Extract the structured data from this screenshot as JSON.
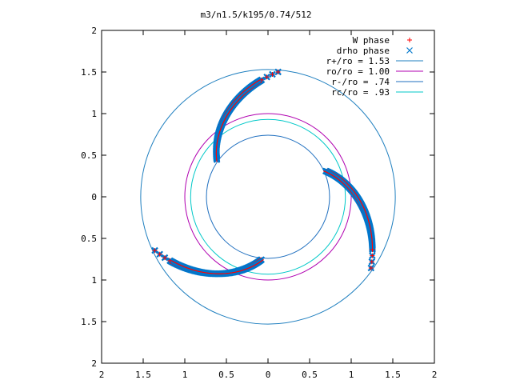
{
  "chart_data": {
    "type": "scatter",
    "title": "m3/n1.5/k195/0.74/512",
    "xlim": [
      -2,
      2
    ],
    "ylim": [
      -2,
      2
    ],
    "x_ticks": [
      -2,
      -1.5,
      -1,
      -0.5,
      0,
      0.5,
      1,
      1.5,
      2
    ],
    "y_ticks": [
      -2,
      -1.5,
      -1,
      -0.5,
      0,
      0.5,
      1,
      1.5,
      2
    ],
    "x_tick_labels": [
      "2",
      "1.5",
      "1",
      "0.5",
      "0",
      "0.5",
      "1",
      "1.5",
      "2"
    ],
    "y_tick_labels": [
      "2",
      "1.5",
      "1",
      "0.5",
      "0",
      "0.5",
      "1",
      "1.5",
      "2"
    ],
    "grid": false,
    "legend_position": "top-right",
    "legend": [
      {
        "label": "W phase",
        "kind": "marker",
        "symbol": "+",
        "color": "#ff0000"
      },
      {
        "label": "drho phase",
        "kind": "marker",
        "symbol": "x",
        "color": "#0077cc"
      },
      {
        "label": "r+/ro = 1.53",
        "kind": "line",
        "color": "#1f7fbf"
      },
      {
        "label": "ro/ro = 1.00",
        "kind": "line",
        "color": "#b000b0"
      },
      {
        "label": "r-/ro = .74",
        "kind": "line",
        "color": "#1f6fbf"
      },
      {
        "label": "rc/ro = .93",
        "kind": "line",
        "color": "#00c8c8"
      }
    ],
    "circles": [
      {
        "radius": 1.53,
        "color": "#1f7fbf"
      },
      {
        "radius": 1.0,
        "color": "#b000b0"
      },
      {
        "radius": 0.74,
        "color": "#1f6fbf"
      },
      {
        "radius": 0.93,
        "color": "#00c8c8"
      }
    ],
    "arms": [
      {
        "r_start": 0.76,
        "angle_start": 144,
        "r_end": 1.51,
        "angle_end": 85,
        "sparse_beyond_r": 1.41
      },
      {
        "r_start": 0.76,
        "angle_start": 264,
        "r_end": 1.51,
        "angle_end": 205,
        "sparse_beyond_r": 1.41
      },
      {
        "r_start": 0.76,
        "angle_start": 24,
        "r_end": 1.51,
        "angle_end": -35,
        "sparse_beyond_r": 1.41
      }
    ]
  }
}
